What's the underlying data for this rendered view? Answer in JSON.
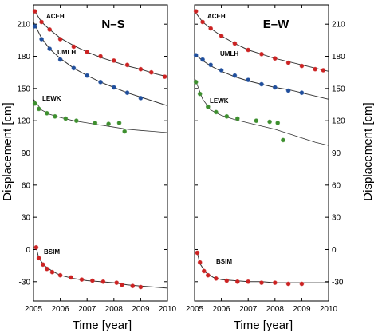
{
  "chart_data": {
    "type": "scatter",
    "xlabel": "Time [year]",
    "ylabel": "Displacement [cm]",
    "xlim": [
      2005.0,
      2010.0
    ],
    "ylim": [
      -48,
      228
    ],
    "xticks": [
      2005,
      2006,
      2007,
      2008,
      2009,
      2010
    ],
    "yticks": [
      -30,
      0,
      30,
      60,
      90,
      120,
      150,
      180,
      210
    ],
    "legend": "none",
    "grid": false,
    "colors": {
      "ACEH": "#cc2222",
      "UMLH": "#1f4e9c",
      "LEWK": "#3d8f2e",
      "BSIM": "#cc2222",
      "model_curve": "#222222"
    },
    "panels": [
      {
        "title": "N–S",
        "series": [
          {
            "name": "ACEH",
            "color": "#cc2222",
            "x": [
              2005.05,
              2005.3,
              2005.6,
              2006.0,
              2006.5,
              2007.0,
              2007.5,
              2008.0,
              2008.5,
              2009.0,
              2009.4,
              2009.9
            ],
            "y": [
              222,
              212,
              205,
              196,
              189,
              184,
              180,
              176,
              172,
              168,
              165,
              161
            ]
          },
          {
            "name": "UMLH",
            "color": "#1f4e9c",
            "x": [
              2005.05,
              2005.3,
              2005.6,
              2006.0,
              2006.5,
              2007.0,
              2007.5,
              2008.0,
              2008.5,
              2009.0
            ],
            "y": [
              208,
              196,
              187,
              177,
              169,
              162,
              156,
              151,
              146,
              141
            ]
          },
          {
            "name": "LEWK",
            "color": "#3d8f2e",
            "x": [
              2005.05,
              2005.2,
              2005.5,
              2005.8,
              2006.2,
              2006.6,
              2007.3,
              2007.8,
              2008.2,
              2008.4
            ],
            "y": [
              136,
              131,
              127,
              124,
              122,
              120,
              118,
              117,
              118,
              110
            ]
          },
          {
            "name": "BSIM",
            "color": "#cc2222",
            "x": [
              2005.1,
              2005.2,
              2005.35,
              2005.5,
              2005.7,
              2006.0,
              2006.4,
              2006.8,
              2007.2,
              2007.6,
              2008.1,
              2008.3,
              2008.7,
              2009.0
            ],
            "y": [
              2,
              -8,
              -14,
              -18,
              -21,
              -24,
              -26,
              -28,
              -29,
              -30,
              -31,
              -33,
              -34,
              -35
            ]
          }
        ],
        "models": [
          {
            "x": [
              2005.0,
              2005.3,
              2005.6,
              2006.0,
              2006.5,
              2007.0,
              2007.5,
              2008.0,
              2008.5,
              2009.0,
              2009.5,
              2010.0
            ],
            "y": [
              224,
              212,
              205,
              197,
              190,
              184,
              179,
              175,
              171,
              168,
              164,
              161
            ]
          },
          {
            "x": [
              2005.0,
              2005.3,
              2005.6,
              2006.0,
              2006.5,
              2007.0,
              2007.5,
              2008.0,
              2008.5,
              2009.0,
              2009.5,
              2010.0
            ],
            "y": [
              212,
              197,
              187,
              178,
              169,
              162,
              156,
              151,
              146,
              142,
              138,
              134
            ]
          },
          {
            "x": [
              2005.0,
              2005.3,
              2005.6,
              2006.0,
              2006.5,
              2007.0,
              2007.5,
              2008.0,
              2008.5,
              2009.0,
              2009.5,
              2010.0
            ],
            "y": [
              140,
              130,
              126,
              123,
              120,
              118,
              116,
              114,
              112,
              111,
              110,
              109
            ]
          },
          {
            "x": [
              2005.1,
              2005.2,
              2005.4,
              2005.7,
              2006.0,
              2006.5,
              2007.0,
              2007.5,
              2008.0,
              2008.5,
              2009.0,
              2009.5,
              2010.0
            ],
            "y": [
              2,
              -8,
              -15,
              -20,
              -24,
              -27,
              -29,
              -30,
              -31,
              -33,
              -34,
              -35,
              -36
            ]
          }
        ]
      },
      {
        "title": "E–W",
        "series": [
          {
            "name": "ACEH",
            "color": "#cc2222",
            "x": [
              2005.05,
              2005.3,
              2005.6,
              2006.0,
              2006.5,
              2007.0,
              2007.5,
              2008.0,
              2008.5,
              2009.0,
              2009.5,
              2009.8
            ],
            "y": [
              222,
              212,
              206,
              199,
              192,
              186,
              182,
              178,
              174,
              171,
              168,
              167
            ]
          },
          {
            "name": "UMLH",
            "color": "#1f4e9c",
            "x": [
              2005.05,
              2005.3,
              2005.6,
              2006.0,
              2006.5,
              2007.0,
              2007.5,
              2008.0,
              2008.5,
              2009.0
            ],
            "y": [
              181,
              177,
              172,
              167,
              162,
              158,
              154,
              151,
              148,
              146
            ]
          },
          {
            "name": "LEWK",
            "color": "#3d8f2e",
            "x": [
              2005.05,
              2005.2,
              2005.5,
              2005.8,
              2006.2,
              2006.6,
              2007.3,
              2007.8,
              2008.1,
              2008.3
            ],
            "y": [
              156,
              145,
              133,
              128,
              124,
              122,
              120,
              119,
              118,
              102
            ]
          },
          {
            "name": "BSIM",
            "color": "#cc2222",
            "x": [
              2005.1,
              2005.2,
              2005.35,
              2005.5,
              2005.8,
              2006.2,
              2006.6,
              2007.0,
              2007.5,
              2008.0,
              2008.5,
              2009.0
            ],
            "y": [
              -3,
              -12,
              -20,
              -24,
              -27,
              -29,
              -30,
              -30,
              -31,
              -31,
              -32,
              -32
            ]
          }
        ],
        "models": [
          {
            "x": [
              2005.0,
              2005.3,
              2005.6,
              2006.0,
              2006.5,
              2007.0,
              2007.5,
              2008.0,
              2008.5,
              2009.0,
              2009.5,
              2010.0
            ],
            "y": [
              222,
              212,
              206,
              199,
              192,
              186,
              182,
              178,
              175,
              172,
              169,
              166
            ]
          },
          {
            "x": [
              2005.0,
              2005.3,
              2005.6,
              2006.0,
              2006.5,
              2007.0,
              2007.5,
              2008.0,
              2008.5,
              2009.0,
              2009.5,
              2010.0
            ],
            "y": [
              182,
              176,
              171,
              166,
              161,
              157,
              154,
              151,
              149,
              146,
              143,
              140
            ]
          },
          {
            "x": [
              2005.0,
              2005.3,
              2005.6,
              2006.0,
              2006.5,
              2007.0,
              2007.5,
              2008.0,
              2008.5,
              2009.0,
              2009.5,
              2010.0
            ],
            "y": [
              160,
              140,
              130,
              125,
              121,
              118,
              115,
              112,
              108,
              104,
              100,
              97
            ]
          },
          {
            "x": [
              2005.1,
              2005.2,
              2005.4,
              2005.7,
              2006.0,
              2006.5,
              2007.0,
              2007.5,
              2008.0,
              2008.5,
              2009.0,
              2009.5,
              2010.0
            ],
            "y": [
              -3,
              -13,
              -21,
              -26,
              -28,
              -29,
              -30,
              -30,
              -31,
              -31,
              -31,
              -31,
              -31
            ]
          }
        ]
      }
    ],
    "station_labels": [
      "ACEH",
      "UMLH",
      "LEWK",
      "BSIM"
    ]
  }
}
